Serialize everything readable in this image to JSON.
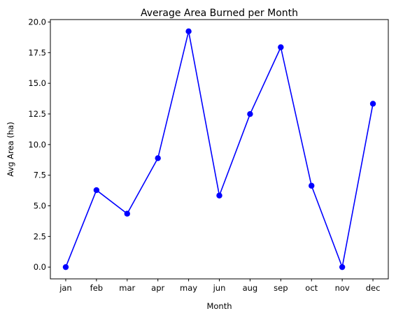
{
  "chart_data": {
    "type": "line",
    "title": "Average Area Burned per Month",
    "xlabel": "Month",
    "ylabel": "Avg Area (ha)",
    "categories": [
      "jan",
      "feb",
      "mar",
      "apr",
      "may",
      "jun",
      "aug",
      "sep",
      "oct",
      "nov",
      "dec"
    ],
    "series": [
      {
        "values": [
          0.0,
          6.28,
          4.36,
          8.89,
          19.24,
          5.84,
          12.49,
          17.94,
          6.64,
          0.0,
          13.33
        ],
        "color": "#0000ff",
        "marker": "circle"
      }
    ],
    "ylim": [
      -0.96,
      20.2
    ],
    "yticks": [
      0.0,
      2.5,
      5.0,
      7.5,
      10.0,
      12.5,
      15.0,
      17.5,
      20.0
    ],
    "ytick_labels": [
      "0.0",
      "2.5",
      "5.0",
      "7.5",
      "10.0",
      "12.5",
      "15.0",
      "17.5",
      "20.0"
    ],
    "grid": false,
    "legend": false
  }
}
